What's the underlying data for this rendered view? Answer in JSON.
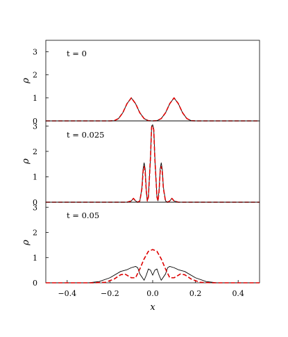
{
  "chart_data": [
    {
      "type": "line",
      "annotation": "t = 0",
      "xlabel": "",
      "ylabel": "ρ",
      "xlim": [
        -0.5,
        0.5
      ],
      "ylim": [
        0,
        3.5
      ],
      "yticks": [
        "0",
        "1",
        "2",
        "3"
      ],
      "series": [
        {
          "style": "solid",
          "color": "#000000",
          "x": [
            -0.5,
            -0.3,
            -0.2,
            -0.18,
            -0.16,
            -0.14,
            -0.12,
            -0.1,
            -0.08,
            -0.06,
            -0.04,
            -0.02,
            0,
            0.02,
            0.04,
            0.06,
            0.08,
            0.1,
            0.12,
            0.14,
            0.16,
            0.18,
            0.2,
            0.3,
            0.5
          ],
          "values": [
            0,
            0,
            0,
            0.01,
            0.1,
            0.35,
            0.75,
            1.0,
            0.75,
            0.35,
            0.1,
            0.01,
            0,
            0.01,
            0.1,
            0.35,
            0.75,
            1.0,
            0.75,
            0.35,
            0.1,
            0.01,
            0,
            0,
            0
          ]
        },
        {
          "style": "dashed",
          "color": "#dd0000",
          "x": [
            -0.5,
            -0.3,
            -0.2,
            -0.18,
            -0.16,
            -0.14,
            -0.12,
            -0.1,
            -0.08,
            -0.06,
            -0.04,
            -0.02,
            0,
            0.02,
            0.04,
            0.06,
            0.08,
            0.1,
            0.12,
            0.14,
            0.16,
            0.18,
            0.2,
            0.3,
            0.5
          ],
          "values": [
            0,
            0,
            0,
            0.01,
            0.1,
            0.35,
            0.75,
            1.0,
            0.75,
            0.35,
            0.1,
            0.01,
            0,
            0.01,
            0.1,
            0.35,
            0.75,
            1.0,
            0.75,
            0.35,
            0.1,
            0.01,
            0,
            0,
            0
          ]
        }
      ]
    },
    {
      "type": "line",
      "annotation": "t = 0.025",
      "xlabel": "",
      "ylabel": "ρ",
      "xlim": [
        -0.5,
        0.5
      ],
      "ylim": [
        0,
        3.2
      ],
      "yticks": [
        "0",
        "1",
        "2",
        "3"
      ],
      "series": [
        {
          "style": "solid",
          "color": "#000000",
          "x": [
            -0.5,
            -0.12,
            -0.1,
            -0.09,
            -0.08,
            -0.07,
            -0.06,
            -0.05,
            -0.045,
            -0.04,
            -0.035,
            -0.03,
            -0.025,
            -0.02,
            -0.01,
            -0.005,
            0,
            0.005,
            0.01,
            0.02,
            0.025,
            0.03,
            0.035,
            0.04,
            0.045,
            0.05,
            0.06,
            0.07,
            0.08,
            0.09,
            0.1,
            0.12,
            0.5
          ],
          "values": [
            0,
            0,
            0.05,
            0.15,
            0.05,
            0,
            0.05,
            0.6,
            1.3,
            1.55,
            1.3,
            0.5,
            0.05,
            0.2,
            1.8,
            3.0,
            3.05,
            2.9,
            1.8,
            0.2,
            0.05,
            0.5,
            1.3,
            1.55,
            1.3,
            0.6,
            0.05,
            0,
            0.05,
            0.15,
            0.05,
            0,
            0
          ]
        },
        {
          "style": "dashed",
          "color": "#dd0000",
          "x": [
            -0.5,
            -0.12,
            -0.1,
            -0.09,
            -0.08,
            -0.07,
            -0.06,
            -0.05,
            -0.045,
            -0.04,
            -0.035,
            -0.03,
            -0.025,
            -0.02,
            -0.01,
            -0.005,
            0,
            0.005,
            0.01,
            0.02,
            0.025,
            0.03,
            0.035,
            0.04,
            0.045,
            0.05,
            0.06,
            0.07,
            0.08,
            0.09,
            0.1,
            0.12,
            0.5
          ],
          "values": [
            0,
            0,
            0.05,
            0.15,
            0.05,
            0,
            0.05,
            0.55,
            1.2,
            1.4,
            1.2,
            0.45,
            0.05,
            0.2,
            1.8,
            2.95,
            3.0,
            2.85,
            1.75,
            0.2,
            0.05,
            0.45,
            1.2,
            1.4,
            1.2,
            0.55,
            0.05,
            0,
            0.05,
            0.15,
            0.05,
            0,
            0
          ]
        }
      ]
    },
    {
      "type": "line",
      "annotation": "t = 0.05",
      "xlabel": "x",
      "ylabel": "ρ",
      "xlim": [
        -0.5,
        0.5
      ],
      "ylim": [
        0,
        3.2
      ],
      "xticks": [
        "−0.4",
        "−0.2",
        "0.0",
        "0.2",
        "0.4"
      ],
      "yticks": [
        "0",
        "1",
        "2",
        "3"
      ],
      "series": [
        {
          "style": "solid",
          "color": "#000000",
          "x": [
            -0.5,
            -0.3,
            -0.25,
            -0.2,
            -0.15,
            -0.12,
            -0.1,
            -0.08,
            -0.07,
            -0.06,
            -0.04,
            -0.03,
            -0.02,
            -0.01,
            0,
            0.01,
            0.02,
            0.03,
            0.04,
            0.06,
            0.07,
            0.08,
            0.1,
            0.12,
            0.15,
            0.2,
            0.25,
            0.3,
            0.5
          ],
          "values": [
            0,
            0,
            0.05,
            0.2,
            0.45,
            0.52,
            0.6,
            0.65,
            0.6,
            0.35,
            0.1,
            0.3,
            0.55,
            0.5,
            0.3,
            0.5,
            0.55,
            0.3,
            0.1,
            0.35,
            0.6,
            0.65,
            0.6,
            0.52,
            0.45,
            0.2,
            0.05,
            0,
            0
          ]
        },
        {
          "style": "dashed",
          "color": "#dd0000",
          "x": [
            -0.5,
            -0.28,
            -0.22,
            -0.18,
            -0.15,
            -0.13,
            -0.1,
            -0.08,
            -0.06,
            -0.04,
            -0.02,
            0,
            0.02,
            0.04,
            0.06,
            0.08,
            0.1,
            0.13,
            0.15,
            0.18,
            0.22,
            0.28,
            0.5
          ],
          "values": [
            0,
            0,
            0.02,
            0.15,
            0.32,
            0.35,
            0.2,
            0.2,
            0.55,
            0.95,
            1.25,
            1.32,
            1.25,
            0.95,
            0.55,
            0.2,
            0.2,
            0.35,
            0.32,
            0.15,
            0.02,
            0,
            0
          ]
        }
      ]
    }
  ]
}
